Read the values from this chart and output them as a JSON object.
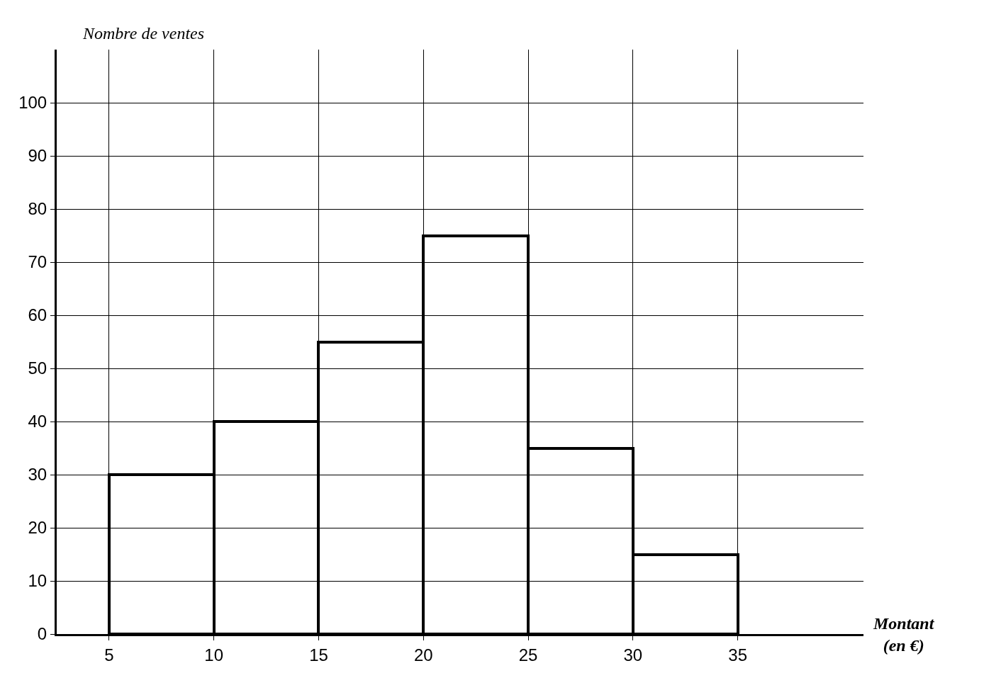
{
  "chart_data": {
    "type": "histogram",
    "xlabel": "Montant (en €)",
    "ylabel": "Nombre de ventes",
    "bins": [
      5,
      10,
      15,
      20,
      25,
      30,
      35
    ],
    "values": [
      30,
      40,
      55,
      75,
      35,
      15
    ],
    "color": "#000000",
    "xlim": [
      2.5,
      41
    ],
    "ylim": [
      0,
      110
    ],
    "xticks": [
      5,
      10,
      15,
      20,
      25,
      30,
      35
    ],
    "yticks": [
      0,
      10,
      20,
      30,
      40,
      50,
      60,
      70,
      80,
      90,
      100
    ],
    "grid": true
  }
}
